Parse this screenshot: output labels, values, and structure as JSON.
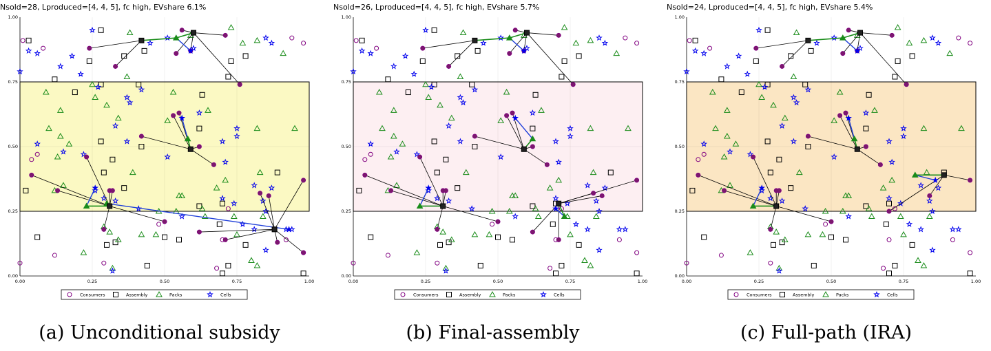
{
  "colors": {
    "consumer": "#800080",
    "assembly": "#000000",
    "pack": "#1a8c1a",
    "cell": "#0000ee",
    "link_assembly": "#000000",
    "link_pack": "#1a8c1a",
    "link_cell": "#1f3fd9",
    "selected_consumer": "#7a1a6b"
  },
  "legend": [
    "Consumers",
    "Assembly",
    "Packs",
    "Cells"
  ],
  "captions": [
    "(a) Unconditional subsidy",
    "(b) Final-assembly",
    "(c) Full-path (IRA)"
  ],
  "chart_data": [
    {
      "type": "scatter",
      "title": "Nsold=28, Lproduced=[4, 4, 5], fc high, EVshare 6.1%",
      "xlim": [
        0,
        1
      ],
      "ylim": [
        0,
        1
      ],
      "xticks": [
        "0.00",
        "0.25",
        "0.50",
        "0.75",
        "1.00"
      ],
      "yticks": [
        "0.00",
        "0.25",
        "0.50",
        "0.75",
        "1.00"
      ],
      "grid": true,
      "legend_position": "bottom",
      "band": {
        "y0": 0.25,
        "y1": 0.75,
        "color": "#fbf9c3"
      }
    },
    {
      "type": "scatter",
      "title": "Nsold=26, Lproduced=[4, 4, 5], fc high, EVshare 5.7%",
      "xlim": [
        0,
        1
      ],
      "ylim": [
        0,
        1
      ],
      "xticks": [
        "0.00",
        "0.25",
        "0.50",
        "0.75",
        "1.00"
      ],
      "yticks": [
        "0.00",
        "0.25",
        "0.50",
        "0.75",
        "1.00"
      ],
      "grid": true,
      "legend_position": "bottom",
      "band": {
        "y0": 0.25,
        "y1": 0.75,
        "color": "#fdeff2"
      }
    },
    {
      "type": "scatter",
      "title": "Nsold=24, Lproduced=[4, 4, 5], fc high, EVshare 5.4%",
      "xlim": [
        0,
        1
      ],
      "ylim": [
        0,
        1
      ],
      "xticks": [
        "0.00",
        "0.25",
        "0.50",
        "0.75",
        "1.00"
      ],
      "yticks": [
        "0.00",
        "0.25",
        "0.50",
        "0.75",
        "1.00"
      ],
      "grid": true,
      "legend_position": "bottom",
      "band": {
        "y0": 0.25,
        "y1": 0.75,
        "color": "#fbe6c3"
      }
    }
  ],
  "background_points": {
    "consumers": [
      [
        0.01,
        0.91
      ],
      [
        0.08,
        0.88
      ],
      [
        0.94,
        0.92
      ],
      [
        0.98,
        0.9
      ],
      [
        0.04,
        0.45
      ],
      [
        0.06,
        0.47
      ],
      [
        0.0,
        0.05
      ],
      [
        0.12,
        0.08
      ],
      [
        0.29,
        0.05
      ],
      [
        0.48,
        0.2
      ],
      [
        0.68,
        0.03
      ],
      [
        0.72,
        0.26
      ],
      [
        0.7,
        0.14
      ],
      [
        0.92,
        0.14
      ],
      [
        0.98,
        0.09
      ]
    ],
    "assembly": [
      [
        0.03,
        0.91
      ],
      [
        0.28,
        0.95
      ],
      [
        0.24,
        0.83
      ],
      [
        0.36,
        0.85
      ],
      [
        0.43,
        0.87
      ],
      [
        0.72,
        0.77
      ],
      [
        0.73,
        0.83
      ],
      [
        0.78,
        0.85
      ],
      [
        0.12,
        0.76
      ],
      [
        0.19,
        0.71
      ],
      [
        0.28,
        0.74
      ],
      [
        0.41,
        0.74
      ],
      [
        0.63,
        0.7
      ],
      [
        0.28,
        0.52
      ],
      [
        0.29,
        0.4
      ],
      [
        0.32,
        0.45
      ],
      [
        0.36,
        0.34
      ],
      [
        0.42,
        0.5
      ],
      [
        0.02,
        0.33
      ],
      [
        0.62,
        0.57
      ],
      [
        0.62,
        0.27
      ],
      [
        0.7,
        0.28
      ],
      [
        0.69,
        0.2
      ],
      [
        0.06,
        0.15
      ],
      [
        0.3,
        0.12
      ],
      [
        0.33,
        0.13
      ],
      [
        0.44,
        0.04
      ],
      [
        0.5,
        0.15
      ],
      [
        0.55,
        0.14
      ],
      [
        0.72,
        0.04
      ],
      [
        0.78,
        0.12
      ],
      [
        0.7,
        0.01
      ],
      [
        0.89,
        0.4
      ],
      [
        0.98,
        0.01
      ]
    ],
    "packs": [
      [
        0.38,
        0.94
      ],
      [
        0.59,
        0.93
      ],
      [
        0.73,
        0.96
      ],
      [
        0.77,
        0.9
      ],
      [
        0.82,
        0.91
      ],
      [
        0.91,
        0.86
      ],
      [
        0.37,
        0.77
      ],
      [
        0.25,
        0.74
      ],
      [
        0.09,
        0.71
      ],
      [
        0.14,
        0.64
      ],
      [
        0.26,
        0.69
      ],
      [
        0.3,
        0.66
      ],
      [
        0.1,
        0.57
      ],
      [
        0.14,
        0.54
      ],
      [
        0.17,
        0.51
      ],
      [
        0.13,
        0.46
      ],
      [
        0.15,
        0.35
      ],
      [
        0.12,
        0.33
      ],
      [
        0.34,
        0.61
      ],
      [
        0.39,
        0.4
      ],
      [
        0.48,
        0.25
      ],
      [
        0.54,
        0.25
      ],
      [
        0.55,
        0.31
      ],
      [
        0.56,
        0.31
      ],
      [
        0.51,
        0.6
      ],
      [
        0.53,
        0.71
      ],
      [
        0.65,
        0.64
      ],
      [
        0.82,
        0.57
      ],
      [
        0.95,
        0.57
      ],
      [
        0.83,
        0.4
      ],
      [
        0.71,
        0.37
      ],
      [
        0.68,
        0.34
      ],
      [
        0.74,
        0.23
      ],
      [
        0.8,
        0.06
      ],
      [
        0.82,
        0.04
      ],
      [
        0.22,
        0.09
      ],
      [
        0.29,
        0.19
      ],
      [
        0.31,
        0.17
      ],
      [
        0.32,
        0.03
      ],
      [
        0.42,
        0.16
      ],
      [
        0.47,
        0.16
      ],
      [
        0.34,
        0.14
      ],
      [
        0.63,
        0.26
      ],
      [
        0.84,
        0.23
      ],
      [
        0.75,
        0.16
      ],
      [
        0.64,
        0.23
      ]
    ],
    "cells": [
      [
        0.0,
        0.79
      ],
      [
        0.03,
        0.87
      ],
      [
        0.06,
        0.86
      ],
      [
        0.14,
        0.81
      ],
      [
        0.18,
        0.85
      ],
      [
        0.21,
        0.78
      ],
      [
        0.25,
        0.95
      ],
      [
        0.45,
        0.9
      ],
      [
        0.51,
        0.92
      ],
      [
        0.6,
        0.88
      ],
      [
        0.85,
        0.92
      ],
      [
        0.87,
        0.9
      ],
      [
        0.27,
        0.73
      ],
      [
        0.37,
        0.69
      ],
      [
        0.38,
        0.67
      ],
      [
        0.42,
        0.72
      ],
      [
        0.33,
        0.58
      ],
      [
        0.37,
        0.52
      ],
      [
        0.15,
        0.48
      ],
      [
        0.22,
        0.47
      ],
      [
        0.06,
        0.51
      ],
      [
        0.62,
        0.63
      ],
      [
        0.75,
        0.57
      ],
      [
        0.75,
        0.54
      ],
      [
        0.7,
        0.52
      ],
      [
        0.71,
        0.44
      ],
      [
        0.51,
        0.46
      ],
      [
        0.81,
        0.35
      ],
      [
        0.84,
        0.29
      ],
      [
        0.85,
        0.25
      ],
      [
        0.87,
        0.34
      ],
      [
        0.29,
        0.3
      ],
      [
        0.26,
        0.33
      ],
      [
        0.33,
        0.29
      ],
      [
        0.41,
        0.26
      ],
      [
        0.77,
        0.2
      ],
      [
        0.74,
        0.28
      ],
      [
        0.7,
        0.3
      ],
      [
        0.81,
        0.18
      ],
      [
        0.85,
        0.1
      ],
      [
        0.92,
        0.18
      ],
      [
        0.94,
        0.18
      ],
      [
        0.32,
        0.02
      ],
      [
        0.56,
        0.23
      ]
    ]
  },
  "networks": [
    {
      "assembly": [
        [
          0.42,
          0.91
        ],
        [
          0.6,
          0.94
        ],
        [
          0.59,
          0.49
        ],
        [
          0.31,
          0.27
        ],
        [
          0.88,
          0.18
        ]
      ],
      "packs": [
        [
          0.54,
          0.92
        ],
        [
          0.58,
          0.53
        ],
        [
          0.23,
          0.27
        ],
        [
          0.3,
          0.28
        ]
      ],
      "cells": [
        [
          0.59,
          0.87
        ],
        [
          0.56,
          0.61
        ],
        [
          0.26,
          0.34
        ],
        [
          0.93,
          0.18
        ]
      ],
      "links": [
        [
          "a",
          0,
          [
            0.24,
            0.88
          ]
        ],
        [
          "a",
          0,
          [
            0.33,
            0.81
          ]
        ],
        [
          "a",
          1,
          [
            0.56,
            0.95
          ]
        ],
        [
          "a",
          1,
          [
            0.54,
            0.86
          ]
        ],
        [
          "a",
          1,
          [
            0.59,
            0.87
          ]
        ],
        [
          "a",
          1,
          [
            0.71,
            0.93
          ]
        ],
        [
          "a",
          1,
          [
            0.76,
            0.74
          ]
        ],
        [
          "a",
          2,
          [
            0.42,
            0.54
          ]
        ],
        [
          "a",
          2,
          [
            0.53,
            0.62
          ]
        ],
        [
          "a",
          2,
          [
            0.55,
            0.63
          ]
        ],
        [
          "a",
          2,
          [
            0.62,
            0.5
          ]
        ],
        [
          "a",
          2,
          [
            0.67,
            0.43
          ]
        ],
        [
          "a",
          3,
          [
            0.04,
            0.39
          ]
        ],
        [
          "a",
          3,
          [
            0.13,
            0.33
          ]
        ],
        [
          "a",
          3,
          [
            0.23,
            0.46
          ]
        ],
        [
          "a",
          3,
          [
            0.31,
            0.33
          ]
        ],
        [
          "a",
          3,
          [
            0.32,
            0.33
          ]
        ],
        [
          "a",
          3,
          [
            0.29,
            0.18
          ]
        ],
        [
          "a",
          3,
          [
            0.5,
            0.21
          ]
        ],
        [
          "a",
          4,
          [
            0.62,
            0.17
          ]
        ],
        [
          "a",
          4,
          [
            0.71,
            0.14
          ]
        ],
        [
          "a",
          4,
          [
            0.83,
            0.32
          ]
        ],
        [
          "a",
          4,
          [
            0.86,
            0.31
          ]
        ],
        [
          "a",
          4,
          [
            0.98,
            0.37
          ]
        ],
        [
          "a",
          4,
          [
            0.89,
            0.13
          ]
        ],
        [
          "a",
          4,
          [
            0.98,
            0.09
          ]
        ]
      ],
      "pack_links": [
        [
          0,
          0
        ],
        [
          0,
          1
        ],
        [
          1,
          2
        ],
        [
          2,
          3
        ],
        [
          3,
          3
        ]
      ],
      "cell_links": [
        [
          0,
          1
        ],
        [
          1,
          2
        ],
        [
          2,
          3
        ],
        [
          3,
          4
        ]
      ]
    },
    {
      "assembly": [
        [
          0.42,
          0.91
        ],
        [
          0.6,
          0.94
        ],
        [
          0.59,
          0.49
        ],
        [
          0.31,
          0.27
        ],
        [
          0.71,
          0.28
        ]
      ],
      "packs": [
        [
          0.54,
          0.92
        ],
        [
          0.62,
          0.53
        ],
        [
          0.23,
          0.27
        ],
        [
          0.73,
          0.23
        ]
      ],
      "cells": [
        [
          0.59,
          0.87
        ],
        [
          0.56,
          0.61
        ],
        [
          0.26,
          0.34
        ],
        [
          0.7,
          0.26
        ]
      ],
      "links": [
        [
          "a",
          0,
          [
            0.24,
            0.88
          ]
        ],
        [
          "a",
          0,
          [
            0.33,
            0.81
          ]
        ],
        [
          "a",
          1,
          [
            0.56,
            0.95
          ]
        ],
        [
          "a",
          1,
          [
            0.54,
            0.86
          ]
        ],
        [
          "a",
          1,
          [
            0.59,
            0.87
          ]
        ],
        [
          "a",
          1,
          [
            0.71,
            0.93
          ]
        ],
        [
          "a",
          1,
          [
            0.76,
            0.74
          ]
        ],
        [
          "a",
          2,
          [
            0.42,
            0.54
          ]
        ],
        [
          "a",
          2,
          [
            0.53,
            0.62
          ]
        ],
        [
          "a",
          2,
          [
            0.55,
            0.63
          ]
        ],
        [
          "a",
          2,
          [
            0.62,
            0.5
          ]
        ],
        [
          "a",
          2,
          [
            0.67,
            0.43
          ]
        ],
        [
          "a",
          3,
          [
            0.04,
            0.39
          ]
        ],
        [
          "a",
          3,
          [
            0.13,
            0.33
          ]
        ],
        [
          "a",
          3,
          [
            0.23,
            0.46
          ]
        ],
        [
          "a",
          3,
          [
            0.31,
            0.33
          ]
        ],
        [
          "a",
          3,
          [
            0.32,
            0.33
          ]
        ],
        [
          "a",
          3,
          [
            0.29,
            0.18
          ]
        ],
        [
          "a",
          3,
          [
            0.5,
            0.21
          ]
        ],
        [
          "a",
          4,
          [
            0.62,
            0.17
          ]
        ],
        [
          "a",
          4,
          [
            0.71,
            0.14
          ]
        ],
        [
          "a",
          4,
          [
            0.83,
            0.32
          ]
        ],
        [
          "a",
          4,
          [
            0.86,
            0.31
          ]
        ],
        [
          "a",
          4,
          [
            0.98,
            0.37
          ]
        ]
      ],
      "pack_links": [
        [
          0,
          0
        ],
        [
          0,
          1
        ],
        [
          1,
          2
        ],
        [
          2,
          3
        ],
        [
          3,
          4
        ]
      ],
      "cell_links": [
        [
          0,
          1
        ],
        [
          1,
          2
        ],
        [
          2,
          3
        ],
        [
          3,
          4
        ]
      ]
    },
    {
      "assembly": [
        [
          0.42,
          0.91
        ],
        [
          0.6,
          0.94
        ],
        [
          0.59,
          0.49
        ],
        [
          0.31,
          0.27
        ],
        [
          0.89,
          0.39
        ]
      ],
      "packs": [
        [
          0.54,
          0.92
        ],
        [
          0.58,
          0.53
        ],
        [
          0.23,
          0.27
        ],
        [
          0.79,
          0.39
        ]
      ],
      "cells": [
        [
          0.59,
          0.87
        ],
        [
          0.56,
          0.61
        ],
        [
          0.26,
          0.34
        ],
        [
          0.86,
          0.37
        ]
      ],
      "links": [
        [
          "a",
          0,
          [
            0.24,
            0.88
          ]
        ],
        [
          "a",
          0,
          [
            0.33,
            0.81
          ]
        ],
        [
          "a",
          1,
          [
            0.56,
            0.95
          ]
        ],
        [
          "a",
          1,
          [
            0.54,
            0.86
          ]
        ],
        [
          "a",
          1,
          [
            0.59,
            0.87
          ]
        ],
        [
          "a",
          1,
          [
            0.71,
            0.93
          ]
        ],
        [
          "a",
          1,
          [
            0.76,
            0.74
          ]
        ],
        [
          "a",
          2,
          [
            0.42,
            0.54
          ]
        ],
        [
          "a",
          2,
          [
            0.53,
            0.62
          ]
        ],
        [
          "a",
          2,
          [
            0.55,
            0.63
          ]
        ],
        [
          "a",
          2,
          [
            0.62,
            0.5
          ]
        ],
        [
          "a",
          2,
          [
            0.67,
            0.43
          ]
        ],
        [
          "a",
          3,
          [
            0.04,
            0.39
          ]
        ],
        [
          "a",
          3,
          [
            0.13,
            0.33
          ]
        ],
        [
          "a",
          3,
          [
            0.23,
            0.46
          ]
        ],
        [
          "a",
          3,
          [
            0.31,
            0.33
          ]
        ],
        [
          "a",
          3,
          [
            0.32,
            0.33
          ]
        ],
        [
          "a",
          3,
          [
            0.29,
            0.18
          ]
        ],
        [
          "a",
          3,
          [
            0.5,
            0.21
          ]
        ],
        [
          "a",
          4,
          [
            0.7,
            0.25
          ]
        ],
        [
          "a",
          4,
          [
            0.84,
            0.31
          ]
        ],
        [
          "a",
          4,
          [
            0.98,
            0.37
          ]
        ]
      ],
      "pack_links": [
        [
          0,
          0
        ],
        [
          0,
          1
        ],
        [
          1,
          2
        ],
        [
          2,
          3
        ],
        [
          3,
          4
        ]
      ],
      "cell_links": [
        [
          0,
          1
        ],
        [
          1,
          2
        ],
        [
          2,
          3
        ],
        [
          3,
          4
        ]
      ]
    }
  ]
}
